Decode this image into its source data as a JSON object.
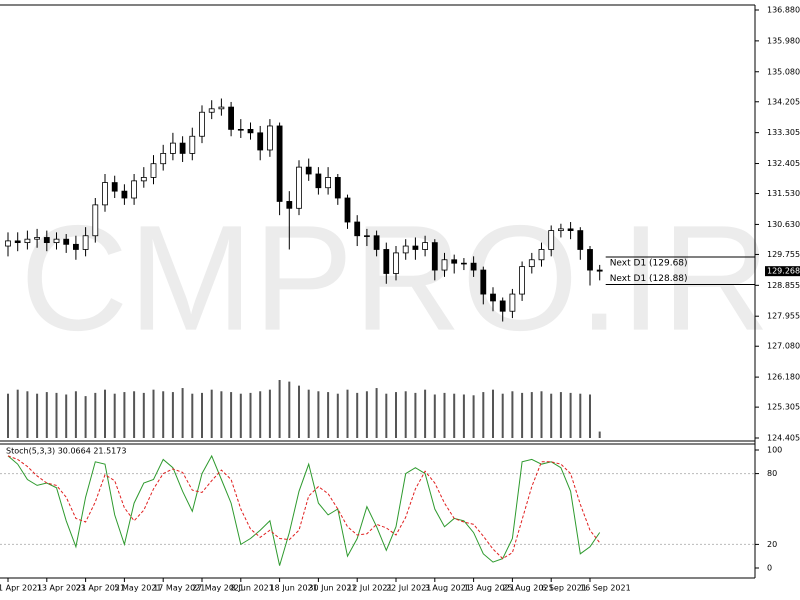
{
  "chart_data": {
    "type": "candlestick",
    "watermark": "CMPRO.IR",
    "categories": [
      "1 Apr 2021",
      null,
      null,
      null,
      "13 Apr 2021",
      null,
      null,
      null,
      "23 Apr 2021",
      null,
      null,
      null,
      "5 May 2021",
      null,
      null,
      null,
      "17 May 2021",
      null,
      null,
      null,
      "27 May 2021",
      null,
      null,
      null,
      "8 Jun 2021",
      null,
      null,
      null,
      "18 Jun 2021",
      null,
      null,
      null,
      "30 Jun 2021",
      null,
      null,
      null,
      "12 Jul 2021",
      null,
      null,
      null,
      "22 Jul 2021",
      null,
      null,
      null,
      "3 Aug 2021",
      null,
      null,
      null,
      "13 Aug 2021",
      null,
      null,
      null,
      "25 Aug 2021",
      null,
      null,
      null,
      "6 Sep 2021",
      null,
      null,
      null,
      "16 Sep 2021",
      null
    ],
    "open": [
      130.0,
      130.15,
      130.1,
      130.2,
      130.25,
      130.1,
      130.2,
      130.05,
      129.9,
      130.3,
      131.2,
      131.85,
      131.6,
      131.4,
      131.9,
      132.0,
      132.4,
      132.7,
      133.0,
      132.7,
      133.2,
      133.9,
      134.0,
      134.05,
      133.4,
      133.4,
      133.3,
      132.8,
      133.5,
      131.3,
      131.1,
      132.3,
      132.1,
      131.7,
      132.0,
      131.4,
      130.7,
      130.3,
      130.3,
      129.9,
      129.2,
      129.8,
      130.0,
      129.9,
      130.1,
      129.3,
      129.6,
      129.5,
      129.5,
      129.3,
      128.6,
      128.4,
      128.1,
      128.6,
      129.4,
      129.6,
      129.9,
      130.45,
      130.5,
      130.45,
      129.9,
      129.3
    ],
    "high": [
      130.4,
      130.4,
      130.45,
      130.5,
      130.45,
      130.4,
      130.35,
      130.3,
      130.55,
      131.4,
      132.1,
      132.05,
      131.8,
      132.1,
      132.3,
      132.65,
      132.95,
      133.3,
      133.2,
      133.45,
      134.1,
      134.25,
      134.3,
      134.2,
      133.7,
      133.6,
      133.5,
      133.7,
      133.6,
      131.6,
      132.5,
      132.55,
      132.3,
      132.3,
      132.1,
      131.5,
      130.9,
      130.5,
      130.45,
      130.1,
      130.0,
      130.2,
      130.25,
      130.3,
      130.2,
      129.8,
      129.75,
      129.65,
      129.7,
      129.4,
      128.8,
      128.5,
      128.75,
      129.55,
      129.8,
      130.1,
      130.6,
      130.65,
      130.7,
      130.55,
      130.0,
      129.45
    ],
    "low": [
      129.7,
      129.85,
      129.9,
      129.95,
      129.85,
      129.9,
      129.8,
      129.6,
      129.7,
      130.1,
      131.0,
      131.4,
      131.2,
      131.2,
      131.7,
      131.8,
      132.2,
      132.5,
      132.45,
      132.5,
      133.0,
      133.7,
      133.8,
      133.2,
      133.15,
      133.1,
      132.5,
      132.6,
      130.9,
      129.9,
      130.9,
      131.9,
      131.5,
      131.5,
      131.2,
      130.5,
      130.0,
      130.0,
      129.7,
      128.9,
      129.0,
      129.6,
      129.6,
      129.7,
      129.0,
      129.1,
      129.2,
      129.3,
      129.1,
      128.3,
      128.1,
      127.8,
      127.9,
      128.4,
      129.2,
      129.4,
      129.7,
      130.25,
      130.2,
      129.6,
      128.85,
      129.0
    ],
    "close": [
      130.15,
      130.1,
      130.2,
      130.25,
      130.1,
      130.2,
      130.05,
      129.9,
      130.3,
      131.2,
      131.85,
      131.6,
      131.4,
      131.9,
      132.0,
      132.4,
      132.7,
      133.0,
      132.7,
      133.2,
      133.9,
      134.0,
      134.05,
      133.4,
      133.4,
      133.3,
      132.8,
      133.5,
      131.3,
      131.1,
      132.3,
      132.1,
      131.7,
      132.0,
      131.4,
      130.7,
      130.3,
      130.3,
      129.9,
      129.2,
      129.8,
      130.0,
      129.9,
      130.1,
      129.3,
      129.6,
      129.5,
      129.5,
      129.3,
      128.6,
      128.4,
      128.1,
      128.6,
      129.4,
      129.6,
      129.9,
      130.45,
      130.5,
      130.45,
      129.9,
      129.3,
      129.268
    ],
    "up_color": "#ffffff",
    "down_color": "#000000",
    "volume": [
      55,
      60,
      58,
      55,
      57,
      56,
      54,
      58,
      52,
      56,
      60,
      55,
      57,
      58,
      56,
      60,
      58,
      57,
      62,
      55,
      56,
      60,
      58,
      57,
      55,
      56,
      58,
      60,
      72,
      70,
      65,
      60,
      58,
      57,
      55,
      60,
      56,
      58,
      62,
      55,
      57,
      58,
      56,
      60,
      54,
      56,
      55,
      54,
      53,
      57,
      60,
      55,
      58,
      56,
      57,
      58,
      55,
      57,
      56,
      55,
      54,
      8
    ],
    "last_price": 129.268,
    "levels": [
      {
        "value": 129.68,
        "label": "Next D1 (129.68)"
      },
      {
        "value": 128.88,
        "label": "Next D1 (128.88)"
      }
    ],
    "ylim": [
      124.405,
      136.88
    ],
    "yticks": [
      {
        "value": 136.88,
        "label": "136.880"
      },
      {
        "value": 135.98,
        "label": "135.980"
      },
      {
        "value": 135.08,
        "label": "135.080"
      },
      {
        "value": 134.205,
        "label": "134.205"
      },
      {
        "value": 133.305,
        "label": "133.305"
      },
      {
        "value": 132.405,
        "label": "132.405"
      },
      {
        "value": 131.53,
        "label": "131.530"
      },
      {
        "value": 130.63,
        "label": "130.630"
      },
      {
        "value": 129.755,
        "label": "129.755"
      },
      {
        "value": 128.855,
        "label": "128.855"
      },
      {
        "value": 127.955,
        "label": "127.955"
      },
      {
        "value": 127.08,
        "label": "127.080"
      },
      {
        "value": 126.18,
        "label": "126.180"
      },
      {
        "value": 125.305,
        "label": "125.305"
      },
      {
        "value": 124.405,
        "label": "124.405"
      }
    ],
    "indicator": {
      "title": "Stoch(5,3,3) 30.0664 21.5173",
      "ylim": [
        0,
        100
      ],
      "yticks": [
        100,
        80,
        20,
        0
      ],
      "levels": [
        80,
        20
      ],
      "series": [
        {
          "name": "Main",
          "color": "#2e9a2e",
          "values": [
            95,
            88,
            75,
            70,
            72,
            68,
            40,
            18,
            60,
            90,
            88,
            45,
            20,
            55,
            72,
            75,
            92,
            85,
            65,
            48,
            80,
            95,
            75,
            55,
            20,
            25,
            32,
            40,
            2,
            30,
            65,
            88,
            55,
            45,
            50,
            10,
            25,
            52,
            35,
            15,
            35,
            80,
            85,
            80,
            50,
            35,
            42,
            40,
            30,
            12,
            5,
            8,
            25,
            90,
            92,
            88,
            90,
            85,
            65,
            12,
            18,
            30.0664
          ]
        },
        {
          "name": "Signal",
          "color": "#e02020",
          "values": [
            95,
            92,
            86,
            78,
            72,
            70,
            60,
            42,
            39,
            56,
            79,
            74,
            51,
            40,
            49,
            67,
            80,
            84,
            81,
            66,
            64,
            74,
            83,
            75,
            50,
            33,
            26,
            32,
            25,
            24,
            32,
            61,
            69,
            63,
            50,
            35,
            28,
            29,
            37,
            34,
            28,
            43,
            67,
            82,
            72,
            55,
            42,
            39,
            37,
            27,
            16,
            8,
            13,
            41,
            69,
            90,
            90,
            88,
            80,
            54,
            32,
            21.5173
          ]
        }
      ]
    }
  }
}
